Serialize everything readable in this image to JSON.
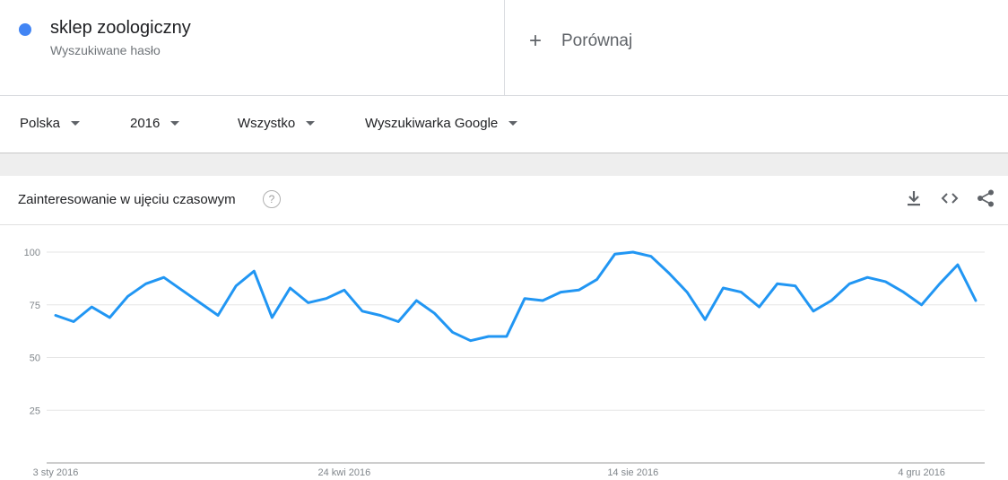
{
  "term": {
    "title": "sklep zoologiczny",
    "subtitle": "Wyszukiwane hasło",
    "color": "#4285f4"
  },
  "compare": {
    "plus": "+",
    "label": "Porównaj"
  },
  "filters": {
    "country": "Polska",
    "year": "2016",
    "category": "Wszystko",
    "source": "Wyszukiwarka Google"
  },
  "card": {
    "title": "Zainteresowanie w ujęciu czasowym",
    "help": "?",
    "icons": [
      "download-icon",
      "embed-icon",
      "share-icon"
    ]
  },
  "chart_data": {
    "type": "line",
    "title": "Zainteresowanie w ujęciu czasowym",
    "ylim": [
      0,
      100
    ],
    "yticks": [
      100,
      75,
      50,
      25
    ],
    "ytick_labels": [
      "100",
      "75",
      "50",
      "25"
    ],
    "xticks": [
      "3 sty 2016",
      "24 kwi 2016",
      "14 sie 2016",
      "4 gru 2016"
    ],
    "grid": true,
    "line_color": "#2196f3",
    "x": [
      "2016-01-03",
      "2016-01-10",
      "2016-01-17",
      "2016-01-24",
      "2016-01-31",
      "2016-02-07",
      "2016-02-14",
      "2016-02-21",
      "2016-02-28",
      "2016-03-06",
      "2016-03-13",
      "2016-03-20",
      "2016-03-27",
      "2016-04-03",
      "2016-04-10",
      "2016-04-17",
      "2016-04-24",
      "2016-05-01",
      "2016-05-08",
      "2016-05-15",
      "2016-05-22",
      "2016-05-29",
      "2016-06-05",
      "2016-06-12",
      "2016-06-19",
      "2016-06-26",
      "2016-07-03",
      "2016-07-10",
      "2016-07-17",
      "2016-07-24",
      "2016-07-31",
      "2016-08-07",
      "2016-08-14",
      "2016-08-21",
      "2016-08-28",
      "2016-09-04",
      "2016-09-11",
      "2016-09-18",
      "2016-09-25",
      "2016-10-02",
      "2016-10-09",
      "2016-10-16",
      "2016-10-23",
      "2016-10-30",
      "2016-11-06",
      "2016-11-13",
      "2016-11-20",
      "2016-11-27",
      "2016-12-04",
      "2016-12-11",
      "2016-12-18",
      "2016-12-25"
    ],
    "values": [
      70,
      67,
      74,
      69,
      79,
      85,
      88,
      82,
      76,
      70,
      84,
      91,
      69,
      83,
      76,
      78,
      82,
      72,
      70,
      67,
      77,
      71,
      62,
      58,
      60,
      60,
      78,
      77,
      81,
      82,
      87,
      99,
      100,
      98,
      90,
      81,
      68,
      83,
      81,
      74,
      85,
      84,
      72,
      77,
      85,
      88,
      86,
      81,
      75,
      85,
      94,
      77
    ]
  }
}
